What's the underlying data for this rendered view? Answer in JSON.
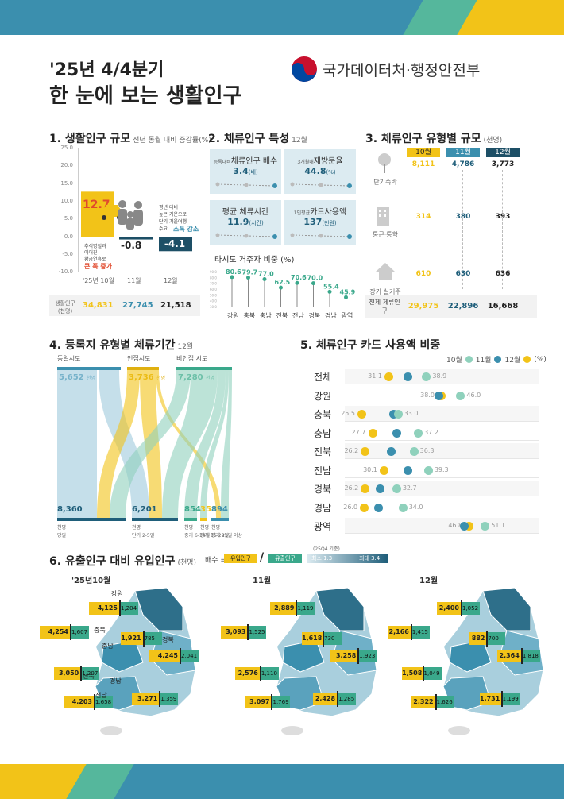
{
  "colors": {
    "teal_dark": "#1f5e7a",
    "teal": "#3b8fae",
    "mint": "#8fd1bc",
    "mint_dark": "#3aa88b",
    "yellow": "#f2c318",
    "light_blue": "#dcebf1",
    "navy": "#1d4f66",
    "red": "#e04a2d"
  },
  "header": {
    "title_line1": "'25년 4/4분기",
    "title_line2": "한 눈에 보는 생활인구",
    "org_name": "국가데이터처·행정안전부",
    "emblem_icon": "taegeuk-icon"
  },
  "s1": {
    "title": "1. 생활인구 규모",
    "subtitle": "전년 동월 대비 증감률(%)",
    "yticks": [
      "25.0",
      "20.0",
      "15.0",
      "10.0",
      "5.0",
      "0.0",
      "-5.0",
      "-10.0"
    ],
    "months": [
      "'25년 10월",
      "11월",
      "12월"
    ],
    "changes": [
      "12.7",
      "-0.8",
      "-4.1"
    ],
    "note_left": [
      "추석명절과",
      "이어진",
      "황금연휴로"
    ],
    "note_left_em": "큰 폭 증가",
    "note_right": [
      "평년 대비",
      "높은 기온으로",
      "단기 겨울여행",
      "수요"
    ],
    "note_right_em": "소폭 감소",
    "row_label": "생활인구 (천명)",
    "totals": [
      "34,831",
      "27,745",
      "21,518"
    ],
    "car_icon": "car-icon",
    "family_icon": "family-icon",
    "chart_data": {
      "type": "bar",
      "categories": [
        "'25년 10월",
        "11월",
        "12월"
      ],
      "values": [
        12.7,
        -0.8,
        -4.1
      ],
      "ylim": [
        -10,
        25
      ]
    }
  },
  "s2": {
    "title": "2. 체류인구 특성",
    "month": "12월",
    "boxes": [
      {
        "prefix": "등록대비",
        "label": "체류인구 배수",
        "value": "3.4",
        "unit": "(배)"
      },
      {
        "prefix": "3개월내",
        "label": "재방문율",
        "value": "44.8",
        "unit": "(%)"
      },
      {
        "prefix": "",
        "label": "평균 체류시간",
        "value": "11.9",
        "unit": "(시간)"
      },
      {
        "prefix": "1인평균",
        "label": "카드사용액",
        "value": "137",
        "unit": "(천원)"
      }
    ],
    "foreign_title": "타시도 거주자 비중 (%)",
    "foreign_yticks": [
      "90.0",
      "80.0",
      "70.0",
      "60.0",
      "50.0",
      "40.0",
      "30.0"
    ],
    "chart_data": {
      "type": "scatter",
      "categories": [
        "강원",
        "충북",
        "충남",
        "전북",
        "전남",
        "경북",
        "경남",
        "광역"
      ],
      "values": [
        80.6,
        79.7,
        77.0,
        62.5,
        70.6,
        70.0,
        55.4,
        45.9
      ],
      "ylim": [
        30,
        90
      ]
    }
  },
  "s3": {
    "title": "3. 체류인구 유형별 규모",
    "unit": "(천명)",
    "months": [
      "10월",
      "11월",
      "12월"
    ],
    "rows": [
      {
        "label": "단기숙박",
        "icon": "tree-icon",
        "values": [
          "8,111",
          "4,786",
          "3,773"
        ]
      },
      {
        "label": "통근·통학",
        "icon": "building-icon",
        "values": [
          "314",
          "380",
          "393"
        ]
      },
      {
        "label": "장기 실거주",
        "icon": "house-icon",
        "values": [
          "610",
          "630",
          "636"
        ]
      }
    ],
    "total_label": "전체 체류인구",
    "totals": [
      "29,975",
      "22,896",
      "16,668"
    ]
  },
  "s4": {
    "title": "4. 등록지 유형별 체류기간",
    "month": "12월",
    "sources": [
      {
        "label": "동일시도",
        "value": "5,652",
        "unit": "천명"
      },
      {
        "label": "인접시도",
        "value": "3,736",
        "unit": "천명"
      },
      {
        "label": "비인접 시도",
        "value": "7,280",
        "unit": "천명"
      }
    ],
    "targets": [
      {
        "label": "당일",
        "value": "8,360",
        "unit": "천명"
      },
      {
        "label": "단기 2-5일",
        "value": "6,201",
        "unit": "천명"
      },
      {
        "label": "중기 6-14일",
        "value": "854",
        "unit": "천명"
      },
      {
        "label": "장기 15-20일",
        "value": "358",
        "unit": "천명"
      },
      {
        "label": "장기 21일 이상",
        "value": "894",
        "unit": "천명"
      }
    ]
  },
  "s5": {
    "title": "5. 체류인구 카드 사용액 비중",
    "legend": [
      "10월",
      "11월",
      "12월",
      "(%)"
    ],
    "chart_data": {
      "type": "scatter",
      "categories": [
        "전체",
        "강원",
        "충북",
        "충남",
        "전북",
        "전남",
        "경북",
        "경남",
        "광역"
      ],
      "series": [
        {
          "name": "10월",
          "min_labels": [
            "31.1",
            "38.0",
            "25.5",
            "27.7",
            "26.2",
            "30.1",
            "26.2",
            "26.0",
            "46.8"
          ],
          "max_labels": [
            "38.9",
            "46.0",
            "33.0",
            "37.2",
            "36.3",
            "39.3",
            "32.7",
            "34.0",
            "51.1"
          ]
        }
      ],
      "xlim": [
        20,
        55
      ]
    },
    "rows": [
      {
        "region": "전체",
        "min": "31.1",
        "max": "38.9",
        "y": 31.1,
        "n": 35.0,
        "m": 38.9
      },
      {
        "region": "강원",
        "min": "38.0",
        "max": "46.0",
        "y": 42.0,
        "n": 41.5,
        "m": 46.0
      },
      {
        "region": "충북",
        "min": "25.5",
        "max": "33.0",
        "y": 25.5,
        "n": 32.0,
        "m": 33.0
      },
      {
        "region": "충남",
        "min": "27.7",
        "max": "37.2",
        "y": 27.7,
        "n": 32.8,
        "m": 37.2
      },
      {
        "region": "전북",
        "min": "26.2",
        "max": "36.3",
        "y": 26.2,
        "n": 31.6,
        "m": 36.3
      },
      {
        "region": "전남",
        "min": "30.1",
        "max": "39.3",
        "y": 30.1,
        "n": 35.1,
        "m": 39.3
      },
      {
        "region": "경북",
        "min": "26.2",
        "max": "32.7",
        "y": 26.2,
        "n": 29.3,
        "m": 32.7
      },
      {
        "region": "경남",
        "min": "26.0",
        "max": "34.0",
        "y": 26.0,
        "n": 29.0,
        "m": 34.0
      },
      {
        "region": "광역",
        "min": "46.8",
        "max": "51.1",
        "y": 47.8,
        "n": 46.8,
        "m": 51.1
      }
    ]
  },
  "s6": {
    "title": "6. 유출인구 대비 유입인구",
    "unit": "(천명)",
    "ratio_label": "배수 =",
    "inflow_label": "유입인구",
    "outflow_label": "유출인구",
    "base_label": "(25Q4 기준)",
    "min_label": "최소 1.3",
    "max_label": "최대 3.4",
    "maps": [
      {
        "month": "'25년10월",
        "pairs": [
          [
            "4,125",
            "1,204"
          ],
          [
            "4,254",
            "1,607"
          ],
          [
            "1,921",
            "785"
          ],
          [
            "4,245",
            "2,041"
          ],
          [
            "3,050",
            "1,207"
          ],
          [
            "4,203",
            "1,658"
          ],
          [
            "3,271",
            "1,359"
          ]
        ],
        "regions": [
          "강원",
          "충북",
          "충남",
          "경북",
          "전북",
          "경남",
          "전남"
        ]
      },
      {
        "month": "11월",
        "pairs": [
          [
            "2,889",
            "1,119"
          ],
          [
            "3,093",
            "1,525"
          ],
          [
            "1,618",
            "730"
          ],
          [
            "3,258",
            "1,923"
          ],
          [
            "2,576",
            "1,110"
          ],
          [
            "3,097",
            "1,769"
          ],
          [
            "2,428",
            "1,285"
          ]
        ]
      },
      {
        "month": "12월",
        "pairs": [
          [
            "2,400",
            "1,052"
          ],
          [
            "2,166",
            "1,415"
          ],
          [
            "882",
            "700"
          ],
          [
            "2,364",
            "1,818"
          ],
          [
            "1,508",
            "1,049"
          ],
          [
            "2,322",
            "1,626"
          ],
          [
            "1,731",
            "1,199"
          ]
        ]
      }
    ]
  }
}
